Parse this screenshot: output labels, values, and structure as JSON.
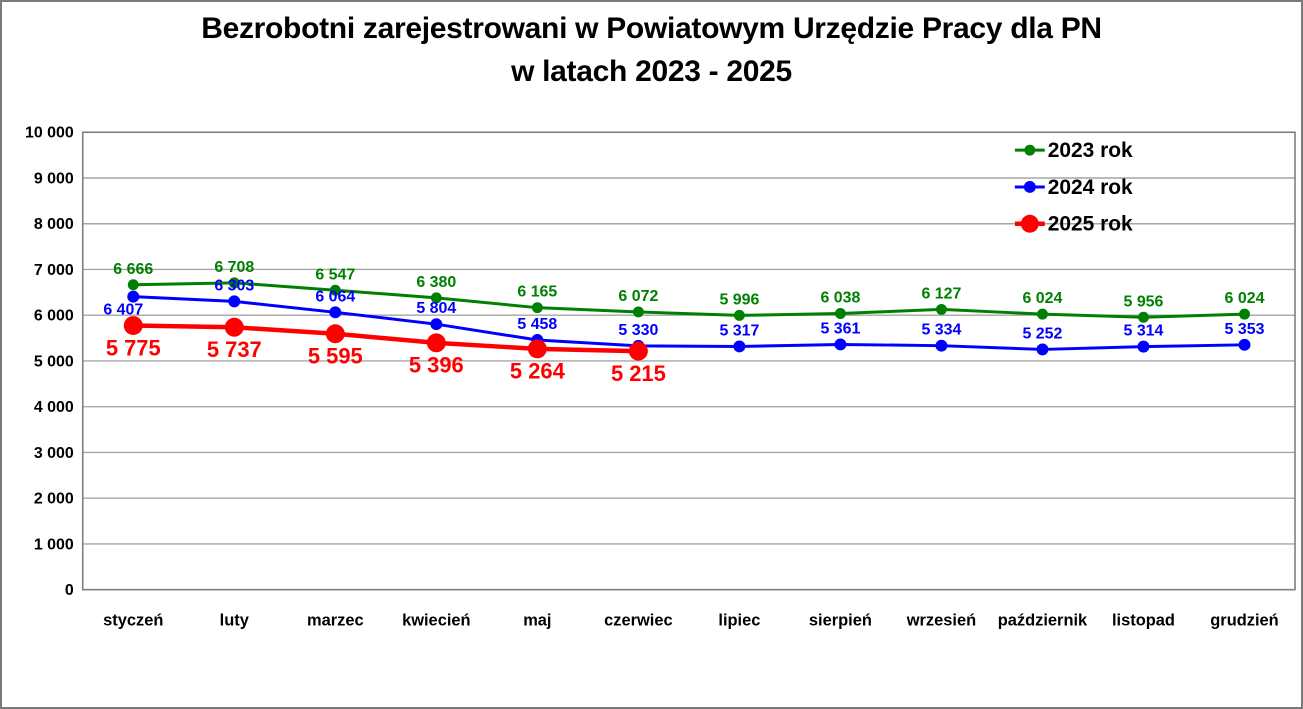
{
  "title": {
    "line1": "Bezrobotni zarejestrowani w Powiatowym Urzędzie Pracy dla PN",
    "line2": "w latach 2023 - 2025"
  },
  "chart_data": {
    "type": "line",
    "title": "Bezrobotni zarejestrowani w Powiatowym Urzędzie Pracy dla PN w latach 2023 - 2025",
    "xlabel": "",
    "ylabel": "",
    "categories": [
      "styczeń",
      "luty",
      "marzec",
      "kwiecień",
      "maj",
      "czerwiec",
      "lipiec",
      "sierpień",
      "wrzesień",
      "październik",
      "listopad",
      "grudzień"
    ],
    "series": [
      {
        "name": "2023 rok",
        "color": "#008000",
        "values": [
          6666,
          6708,
          6547,
          6380,
          6165,
          6072,
          5996,
          6038,
          6127,
          6024,
          5956,
          6024
        ]
      },
      {
        "name": "2024 rok",
        "color": "#0000ff",
        "values": [
          6407,
          6303,
          6064,
          5804,
          5458,
          5330,
          5317,
          5361,
          5334,
          5252,
          5314,
          5353
        ]
      },
      {
        "name": "2025 rok",
        "color": "#ff0000",
        "values": [
          5775,
          5737,
          5595,
          5396,
          5264,
          5215
        ]
      }
    ],
    "ylim": [
      0,
      10000
    ],
    "ytick_step": 1000,
    "ytick_labels": [
      "0",
      "1 000",
      "2 000",
      "3 000",
      "4 000",
      "5 000",
      "6 000",
      "7 000",
      "8 000",
      "9 000",
      "10 000"
    ],
    "grid": "horizontal",
    "legend_position": "top-right",
    "data_labels": "on",
    "number_format": "space-thousands"
  },
  "colors": {
    "grid": "#a6a6a6",
    "plot_border": "#7f7f7f",
    "text": "#000000",
    "background": "#ffffff"
  }
}
